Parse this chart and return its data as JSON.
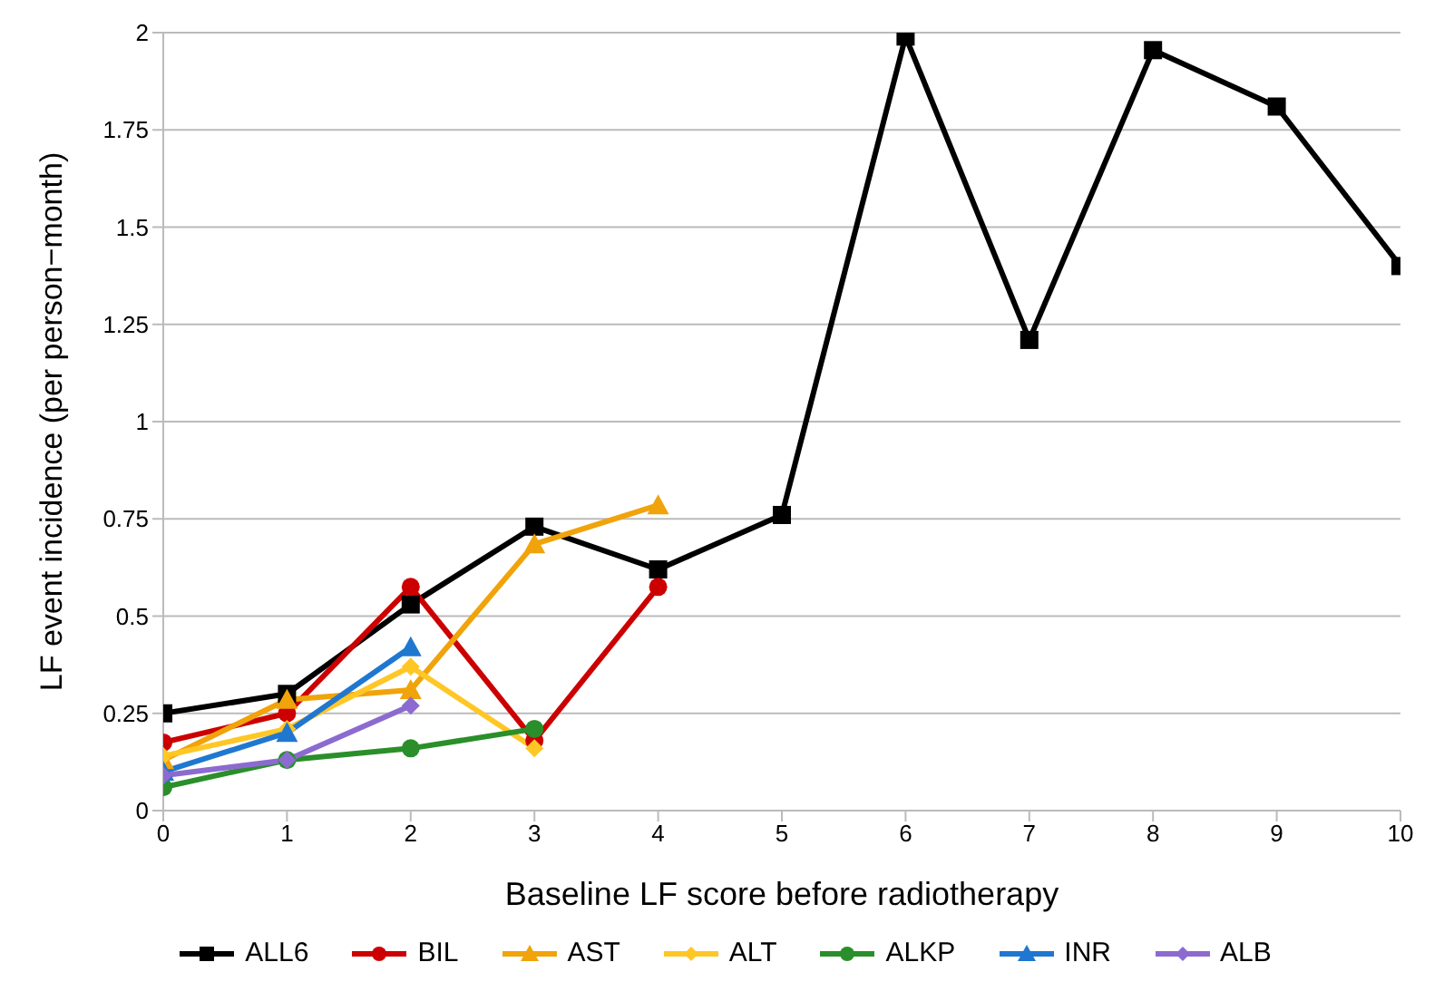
{
  "chart_data": {
    "type": "line",
    "xlabel": "Baseline LF score before radiotherapy",
    "ylabel": "LF event incidence (per person−month)",
    "x": [
      0,
      1,
      2,
      3,
      4,
      5,
      6,
      7,
      8,
      9,
      10
    ],
    "xlim": [
      0,
      10
    ],
    "xticks": [
      0,
      1,
      2,
      3,
      4,
      5,
      6,
      7,
      8,
      9,
      10
    ],
    "ylim": [
      0,
      2
    ],
    "yticks": [
      0,
      0.25,
      0.5,
      0.75,
      1,
      1.25,
      1.5,
      1.75,
      2
    ],
    "grid": "y",
    "legend": "bottom",
    "series": [
      {
        "name": "ALL6",
        "color": "#000000",
        "marker": "square",
        "values": [
          0.25,
          0.3,
          0.53,
          0.73,
          0.62,
          0.76,
          1.99,
          1.21,
          1.955,
          1.81,
          1.4
        ]
      },
      {
        "name": "BIL",
        "color": "#cc0000",
        "marker": "circle",
        "values": [
          0.175,
          0.25,
          0.575,
          0.18,
          0.575,
          null,
          null,
          null,
          null,
          null,
          null
        ]
      },
      {
        "name": "AST",
        "color": "#f0a30a",
        "marker": "triangle",
        "values": [
          0.13,
          0.285,
          0.31,
          0.685,
          0.785,
          null,
          null,
          null,
          null,
          null,
          null
        ]
      },
      {
        "name": "ALT",
        "color": "#ffc726",
        "marker": "diamond",
        "values": [
          0.14,
          0.21,
          0.37,
          0.16,
          null,
          null,
          null,
          null,
          null,
          null,
          null
        ]
      },
      {
        "name": "ALKP",
        "color": "#2a8f2a",
        "marker": "circle",
        "values": [
          0.06,
          0.13,
          0.16,
          0.21,
          null,
          null,
          null,
          null,
          null,
          null,
          null
        ]
      },
      {
        "name": "INR",
        "color": "#1f77d0",
        "marker": "triangle",
        "values": [
          0.1,
          0.2,
          0.42,
          null,
          null,
          null,
          null,
          null,
          null,
          null,
          null
        ]
      },
      {
        "name": "ALB",
        "color": "#8c6bd0",
        "marker": "diamond",
        "values": [
          0.09,
          0.13,
          0.27,
          null,
          null,
          null,
          null,
          null,
          null,
          null,
          null
        ]
      }
    ]
  }
}
